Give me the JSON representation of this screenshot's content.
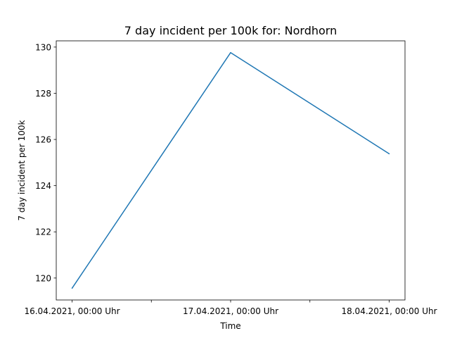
{
  "chart_data": {
    "type": "line",
    "title": "7 day incident per 100k for: Nordhorn",
    "xlabel": "Time",
    "ylabel": "7 day incident per 100k",
    "x": [
      "16.04.2021, 00:00 Uhr",
      "17.04.2021, 00:00 Uhr",
      "18.04.2021, 00:00 Uhr"
    ],
    "series": [
      {
        "values": [
          119.56,
          129.76,
          125.38
        ],
        "color": "#1f77b4"
      }
    ],
    "xticks": [
      "16.04.2021, 00:00 Uhr",
      "",
      "17.04.2021, 00:00 Uhr",
      "",
      "18.04.2021, 00:00 Uhr"
    ],
    "yticks": [
      120,
      122,
      124,
      126,
      128,
      130
    ],
    "ylim": [
      119.05,
      130.27
    ],
    "grid": false,
    "legend": "none"
  }
}
